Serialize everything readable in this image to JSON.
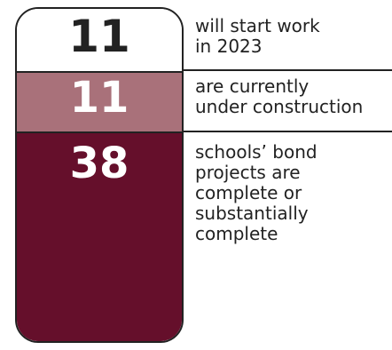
{
  "chart_data": {
    "type": "bar",
    "title": "",
    "categories": [
      "will start work in 2023",
      "are currently under construction",
      "schools’ bond projects are complete or substantially complete"
    ],
    "values": [
      11,
      11,
      38
    ],
    "segments": [
      {
        "value": 11,
        "value_text": "11",
        "label_lines": [
          "will start work",
          "in 2023"
        ],
        "color": "#ffffff",
        "text_color": "#222222"
      },
      {
        "value": 11,
        "value_text": "11",
        "label_lines": [
          "are currently",
          "under construction"
        ],
        "color": "#a9717a",
        "text_color": "#ffffff"
      },
      {
        "value": 38,
        "value_text": "38",
        "label_lines": [
          "schools’ bond",
          "projects are",
          "complete or",
          "substantially",
          "complete"
        ],
        "color": "#650f2b",
        "text_color": "#ffffff"
      }
    ]
  }
}
